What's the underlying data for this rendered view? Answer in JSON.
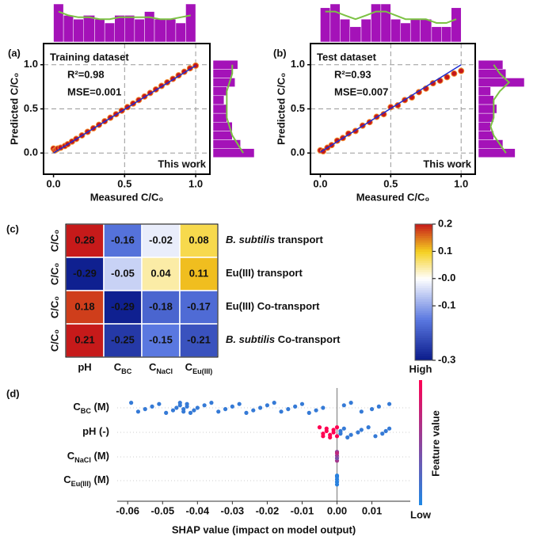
{
  "chart_data": [
    {
      "type": "scatter",
      "panel_label": "(a)",
      "title": "Training dataset",
      "annotations": [
        "R²=0.98",
        "MSE=0.001",
        "This work"
      ],
      "x_label": "Measured C/C₀",
      "y_label": "Predicted C/C₀",
      "xlim": [
        -0.07,
        1.1
      ],
      "ylim": [
        -0.24,
        1.24
      ],
      "xticks": [
        {
          "value": 0,
          "label": "0.0"
        },
        0.5,
        {
          "value": 1,
          "label": "1.0"
        }
      ],
      "yticks": [
        {
          "value": 0,
          "label": "0.0"
        },
        0.5,
        {
          "value": 1,
          "label": "1.0"
        }
      ],
      "grid": true,
      "points": {
        "color": "#c4161c",
        "edge_color": "#f08a2a",
        "x": [
          0,
          0.01,
          0.02,
          0.03,
          0.05,
          0.08,
          0.1,
          0.13,
          0.16,
          0.2,
          0.24,
          0.28,
          0.32,
          0.36,
          0.4,
          0.44,
          0.48,
          0.52,
          0.56,
          0.6,
          0.64,
          0.68,
          0.72,
          0.76,
          0.8,
          0.84,
          0.88,
          0.92,
          0.96,
          1.0
        ],
        "y": [
          0.05,
          0.03,
          0.04,
          0.05,
          0.06,
          0.08,
          0.1,
          0.13,
          0.16,
          0.2,
          0.24,
          0.28,
          0.32,
          0.36,
          0.4,
          0.44,
          0.48,
          0.52,
          0.56,
          0.6,
          0.64,
          0.68,
          0.72,
          0.76,
          0.8,
          0.84,
          0.88,
          0.92,
          0.96,
          0.99
        ]
      },
      "fit": {
        "color": "#1f2fd0",
        "x": [
          0,
          1
        ],
        "y": [
          0,
          0.99
        ]
      },
      "x_hist": {
        "color": "#a412b8",
        "kde_color": "#7cc243",
        "bins": [
          0,
          0.07,
          0.14,
          0.21,
          0.29,
          0.36,
          0.43,
          0.5,
          0.57,
          0.64,
          0.71,
          0.79,
          0.86,
          0.93,
          1.0
        ],
        "counts": [
          10,
          7,
          6,
          7,
          6,
          5,
          7,
          7,
          6,
          8,
          6,
          6,
          5,
          10
        ],
        "kde": [
          8,
          7,
          6.5,
          6.5,
          6,
          6,
          6.5,
          6.5,
          6.5,
          6.5,
          6,
          6,
          6.5,
          7
        ]
      },
      "y_hist": {
        "color": "#a412b8",
        "kde_color": "#7cc243",
        "bins": [
          -0.05,
          0.05,
          0.15,
          0.25,
          0.35,
          0.45,
          0.55,
          0.65,
          0.75,
          0.85,
          0.95,
          1.05
        ],
        "counts": [
          15,
          10,
          7,
          7,
          5,
          5,
          4,
          5,
          8,
          7,
          9
        ],
        "kde": [
          11,
          9,
          7,
          6,
          5,
          5,
          5,
          5,
          6,
          7,
          7
        ]
      }
    },
    {
      "type": "scatter",
      "panel_label": "(b)",
      "title": "Test dataset",
      "annotations": [
        "R²=0.93",
        "MSE=0.007",
        "This work"
      ],
      "x_label": "Measured C/C₀",
      "y_label": "Predicted C/C₀",
      "xlim": [
        -0.07,
        1.1
      ],
      "ylim": [
        -0.24,
        1.24
      ],
      "xticks": [
        {
          "value": 0,
          "label": "0.0"
        },
        0.5,
        {
          "value": 1,
          "label": "1.0"
        }
      ],
      "yticks": [
        {
          "value": 0,
          "label": "0.0"
        },
        0.5,
        {
          "value": 1,
          "label": "1.0"
        }
      ],
      "grid": true,
      "points": {
        "color": "#c4161c",
        "edge_color": "#f08a2a",
        "x": [
          0,
          0.02,
          0.05,
          0.08,
          0.12,
          0.16,
          0.2,
          0.25,
          0.3,
          0.35,
          0.4,
          0.45,
          0.5,
          0.55,
          0.6,
          0.65,
          0.7,
          0.75,
          0.8,
          0.85,
          0.9,
          0.95,
          1.0
        ],
        "y": [
          0.03,
          0.02,
          0.06,
          0.09,
          0.14,
          0.17,
          0.22,
          0.25,
          0.31,
          0.35,
          0.41,
          0.44,
          0.52,
          0.54,
          0.6,
          0.63,
          0.69,
          0.73,
          0.79,
          0.82,
          0.86,
          0.9,
          0.93
        ]
      },
      "fit": {
        "color": "#1f2fd0",
        "x": [
          0,
          1
        ],
        "y": [
          0.01,
          1.0
        ]
      },
      "x_hist": {
        "color": "#a412b8",
        "kde_color": "#7cc243",
        "bins": [
          0,
          0.07,
          0.14,
          0.21,
          0.29,
          0.36,
          0.43,
          0.5,
          0.57,
          0.64,
          0.71,
          0.79,
          0.86,
          0.93,
          1.0
        ],
        "counts": [
          9,
          10,
          6,
          4,
          6,
          10,
          10,
          6,
          5,
          6,
          6,
          4,
          4,
          9
        ],
        "kde": [
          8,
          8,
          7,
          6,
          7,
          8,
          8,
          7,
          6,
          6,
          6,
          5,
          5,
          6
        ]
      },
      "y_hist": {
        "color": "#a412b8",
        "kde_color": "#7cc243",
        "bins": [
          -0.05,
          0.05,
          0.15,
          0.25,
          0.35,
          0.45,
          0.55,
          0.65,
          0.75,
          0.85,
          0.95,
          1.05
        ],
        "counts": [
          12,
          8,
          5,
          4,
          5,
          6,
          5,
          4,
          15,
          9,
          8
        ],
        "kde": [
          9,
          7,
          5,
          4,
          5,
          5,
          5,
          7,
          10,
          7,
          5
        ]
      }
    },
    {
      "type": "heatmap",
      "panel_label": "(c)",
      "row_axis_labels": [
        "C/C₀",
        "C/C₀",
        "C/C₀",
        "C/C₀"
      ],
      "row_names": [
        {
          "italic": "B. subtilis",
          "text": " transport"
        },
        {
          "text": "Eu(III) transport"
        },
        {
          "text": "Eu(III) Co-transport"
        },
        {
          "italic": "B. subtilis",
          "text": " Co-transport"
        }
      ],
      "columns": [
        {
          "text": "pH"
        },
        {
          "text": "C",
          "sub": "BC"
        },
        {
          "text": "C",
          "sub": "NaCl"
        },
        {
          "text": "C",
          "sub": "Eu(III)"
        }
      ],
      "values": [
        [
          0.28,
          -0.16,
          -0.02,
          0.08
        ],
        [
          -0.29,
          -0.05,
          0.04,
          0.11
        ],
        [
          0.18,
          -0.29,
          -0.18,
          -0.17
        ],
        [
          0.21,
          -0.25,
          -0.15,
          -0.21
        ]
      ],
      "zlim": [
        -0.3,
        0.2
      ],
      "colorscale": [
        [
          -0.3,
          "#0a1a8a"
        ],
        [
          -0.15,
          "#5a78e0"
        ],
        [
          0,
          "#ffffff"
        ],
        [
          0.1,
          "#f5d020"
        ],
        [
          0.2,
          "#c61a1a"
        ]
      ],
      "colorbar_ticks": [
        0.2,
        0.1,
        {
          "value": 0,
          "label": "-0.0"
        },
        -0.1,
        -0.3
      ]
    },
    {
      "type": "beeswarm",
      "panel_label": "(d)",
      "features": [
        {
          "text": "C",
          "sub": "BC",
          "suffix": " (M)"
        },
        {
          "text": "pH (-)"
        },
        {
          "text": "C",
          "sub": "NaCl",
          "suffix": " (M)"
        },
        {
          "text": "C",
          "sub": "Eu(III)",
          "suffix": " (M)"
        }
      ],
      "x_label": "SHAP value (impact on model output)",
      "xlim": [
        -0.063,
        0.021
      ],
      "xticks": [
        -0.06,
        -0.05,
        -0.04,
        -0.03,
        -0.02,
        -0.01,
        {
          "value": 0,
          "label": "0.00"
        },
        0.01
      ],
      "shap": [
        [
          -0.059,
          -0.057,
          -0.055,
          -0.053,
          -0.051,
          -0.049,
          -0.047,
          -0.046,
          -0.045,
          -0.045,
          -0.044,
          -0.044,
          -0.043,
          -0.043,
          -0.042,
          -0.041,
          -0.04,
          -0.038,
          -0.036,
          -0.034,
          -0.032,
          -0.03,
          -0.028,
          -0.026,
          -0.024,
          -0.022,
          -0.02,
          -0.018,
          -0.016,
          -0.014,
          -0.012,
          -0.01,
          -0.008,
          -0.006,
          -0.004,
          0.002,
          0.004,
          0.007,
          0.01,
          0.012,
          0.015
        ],
        [
          -0.005,
          -0.004,
          -0.004,
          -0.003,
          -0.003,
          -0.002,
          -0.002,
          -0.001,
          -0.001,
          0,
          0,
          0.001,
          0.001,
          0.002,
          0.003,
          0.004,
          0.006,
          0.007,
          0.009,
          0.011,
          0.013,
          0.014,
          0.015
        ],
        [
          0,
          0,
          0,
          0,
          0
        ],
        [
          0,
          0,
          0,
          0,
          0
        ]
      ],
      "feature_values": [
        [
          0.1,
          0.1,
          0.1,
          0.1,
          0.1,
          0.1,
          0.1,
          0.1,
          0.1,
          0.1,
          0.1,
          0.1,
          0.1,
          0.1,
          0.1,
          0.1,
          0.1,
          0.1,
          0.1,
          0.1,
          0.1,
          0.1,
          0.1,
          0.1,
          0.1,
          0.1,
          0.1,
          0.1,
          0.1,
          0.1,
          0.1,
          0.1,
          0.1,
          0.1,
          0.1,
          0.1,
          0.1,
          0.1,
          0.1,
          0.1,
          0.1
        ],
        [
          1,
          1,
          1,
          1,
          1,
          1,
          1,
          1,
          1,
          1,
          1,
          0.1,
          0.1,
          0.1,
          0.1,
          0.1,
          0.1,
          0.1,
          0.1,
          0.1,
          0.1,
          0.1,
          0.1
        ],
        [
          0.5,
          0.6,
          0.4,
          0.5,
          0.7
        ],
        [
          0.05,
          0.05,
          0.05,
          0.05,
          0.05
        ]
      ],
      "low_color": "#1e88e5",
      "high_color": "#ff0052",
      "colorbar_high": "High",
      "colorbar_low": "Low",
      "colorbar_label": "Feature value"
    }
  ]
}
